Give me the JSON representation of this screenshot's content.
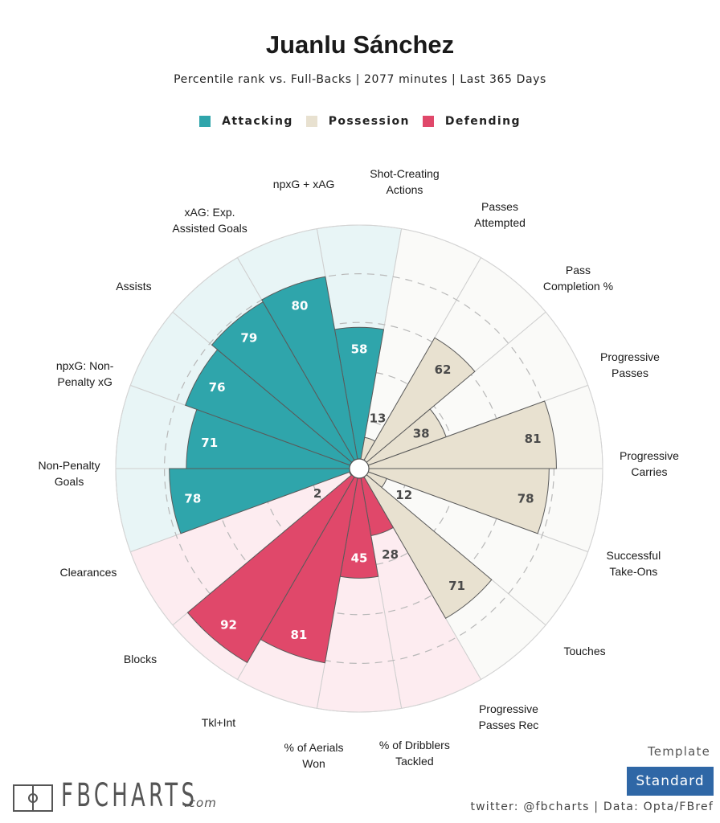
{
  "header": {
    "title": "Juanlu Sánchez",
    "subtitle": "Percentile rank vs. Full-Backs | 2077 minutes | Last 365 Days"
  },
  "legend": [
    {
      "label": "Attacking",
      "color": "#2fa5ab"
    },
    {
      "label": "Possession",
      "color": "#e8e1d0"
    },
    {
      "label": "Defending",
      "color": "#e0486a"
    }
  ],
  "footer": {
    "logo_text": "FBCHARTS",
    "logo_suffix": ".com",
    "template_label": "Template",
    "template_value": "Standard",
    "credit": "twitter: @fbcharts | Data: Opta/FBref"
  },
  "chart_data": {
    "type": "pie",
    "subtype": "radial-bar (pizza) chart",
    "title": "Juanlu Sánchez",
    "subtitle": "Percentile rank vs. Full-Backs | 2077 minutes | Last 365 Days",
    "value_range": [
      0,
      100
    ],
    "rings": [
      20,
      40,
      60,
      80,
      100
    ],
    "start": "top, clockwise",
    "categories": [
      "Shot-Creating Actions",
      "Passes Attempted",
      "Pass Completion %",
      "Progressive Passes",
      "Progressive Carries",
      "Successful Take-Ons",
      "Touches",
      "Progressive Passes Rec",
      "% of Dribblers Tackled",
      "% of Aerials Won",
      "Tkl+Int",
      "Blocks",
      "Clearances",
      "Non-Penalty Goals",
      "npxG: Non-Penalty xG",
      "Assists",
      "xAG: Exp. Assisted Goals",
      "npxG + xAG"
    ],
    "display_labels": [
      "Shot-Creating\nActions",
      "Passes\nAttempted",
      "Pass\nCompletion %",
      "Progressive\nPasses",
      "Progressive\nCarries",
      "Successful\nTake-Ons",
      "Touches",
      "Progressive\nPasses Rec",
      "% of Dribblers\nTackled",
      "% of Aerials\nWon",
      "Tkl+Int",
      "Blocks",
      "Clearances",
      "Non-Penalty\nGoals",
      "npxG: Non-\nPenalty xG",
      "Assists",
      "xAG: Exp.\nAssisted Goals",
      "npxG + xAG"
    ],
    "slice_values": [
      58,
      13,
      62,
      38,
      81,
      78,
      12,
      71,
      28,
      45,
      81,
      92,
      2,
      78,
      71,
      76,
      79,
      80
    ],
    "slice_groups": [
      "Attacking",
      "Possession",
      "Possession",
      "Possession",
      "Possession",
      "Possession",
      "Possession",
      "Possession",
      "Defending",
      "Defending",
      "Defending",
      "Defending",
      "Defending",
      "Attacking",
      "Attacking",
      "Attacking",
      "Attacking",
      "Attacking"
    ],
    "series": [
      {
        "name": "Attacking",
        "color": "#2fa5ab",
        "background": "#e8f5f6"
      },
      {
        "name": "Possession",
        "color": "#e8e1d0",
        "background": "#fafaf8"
      },
      {
        "name": "Defending",
        "color": "#e0486a",
        "background": "#fdecf0"
      }
    ]
  }
}
